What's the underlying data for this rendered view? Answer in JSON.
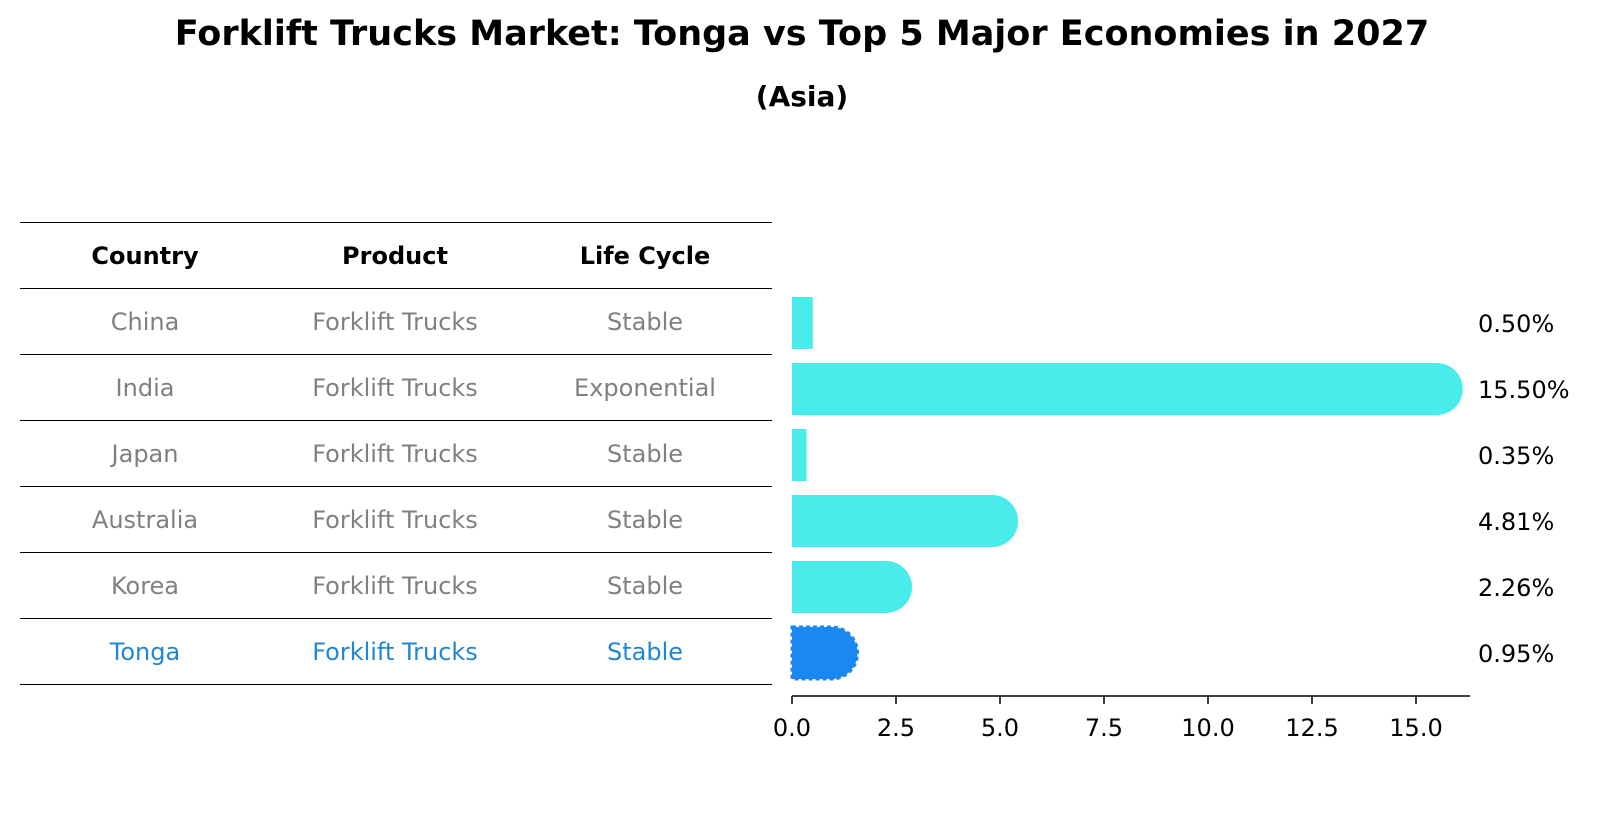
{
  "title": "Forklift Trucks Market: Tonga vs Top 5 Major Economies in 2027",
  "subtitle": "(Asia)",
  "table": {
    "headers": [
      "Country",
      "Product",
      "Life Cycle"
    ],
    "rows": [
      {
        "country": "China",
        "product": "Forklift Trucks",
        "life_cycle": "Stable"
      },
      {
        "country": "India",
        "product": "Forklift Trucks",
        "life_cycle": "Exponential"
      },
      {
        "country": "Japan",
        "product": "Forklift Trucks",
        "life_cycle": "Stable"
      },
      {
        "country": "Australia",
        "product": "Forklift Trucks",
        "life_cycle": "Stable"
      },
      {
        "country": "Korea",
        "product": "Forklift Trucks",
        "life_cycle": "Stable"
      },
      {
        "country": "Tonga",
        "product": "Forklift Trucks",
        "life_cycle": "Stable"
      }
    ]
  },
  "colors": {
    "bar": "#4aeceb",
    "highlight_bar": "#1a87f2",
    "highlight_text": "#1f87d6",
    "muted_text": "#808080"
  },
  "chart_data": {
    "type": "bar",
    "orientation": "horizontal",
    "categories": [
      "China",
      "India",
      "Japan",
      "Australia",
      "Korea",
      "Tonga"
    ],
    "values": [
      0.5,
      15.5,
      0.35,
      4.81,
      2.26,
      0.95
    ],
    "value_labels": [
      "0.50%",
      "15.50%",
      "0.35%",
      "4.81%",
      "2.26%",
      "0.95%"
    ],
    "highlight": "Tonga",
    "xlim": [
      0,
      16.3
    ],
    "xticks": [
      0.0,
      2.5,
      5.0,
      7.5,
      10.0,
      12.5,
      15.0
    ],
    "xtick_labels": [
      "0.0",
      "2.5",
      "5.0",
      "7.5",
      "10.0",
      "12.5",
      "15.0"
    ],
    "title": "Forklift Trucks Market: Tonga vs Top 5 Major Economies in 2027",
    "xlabel": "",
    "ylabel": ""
  }
}
